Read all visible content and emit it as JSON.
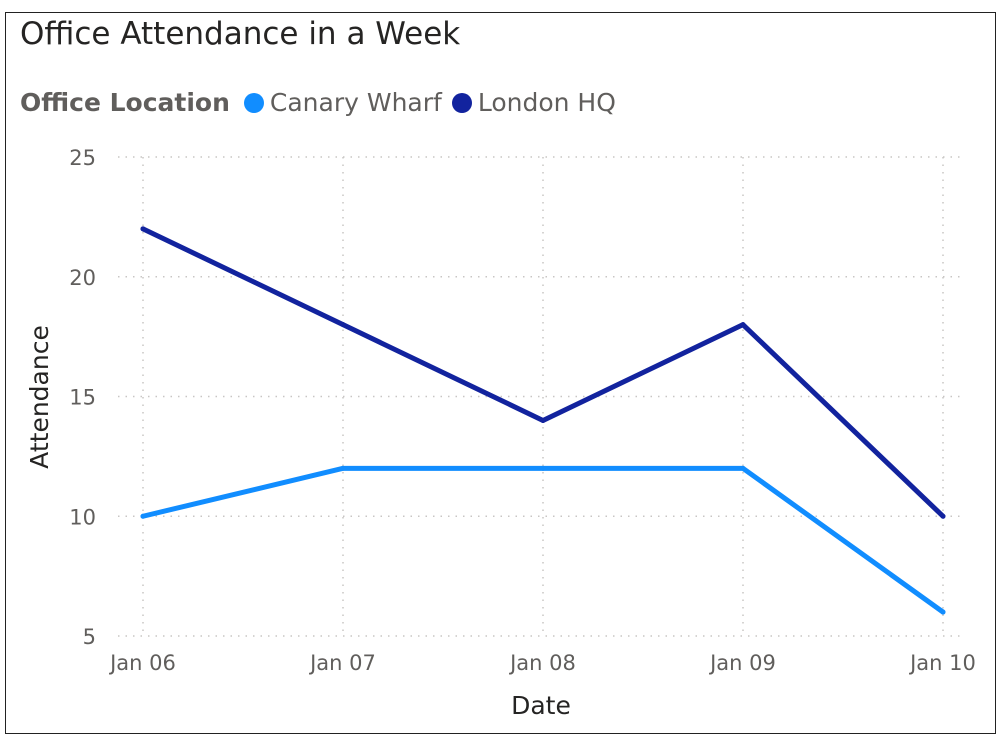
{
  "chart_data": {
    "type": "line",
    "title": "Office Attendance in a Week",
    "legend_title": "Office Location",
    "legend_position": "top-left",
    "xlabel": "Date",
    "ylabel": "Attendance",
    "categories": [
      "Jan 06",
      "Jan 07",
      "Jan 08",
      "Jan 09",
      "Jan 10"
    ],
    "yticks": [
      5,
      10,
      15,
      20,
      25
    ],
    "ylim": [
      5,
      25
    ],
    "grid": true,
    "series": [
      {
        "name": "Canary Wharf",
        "color": "#118DFF",
        "values": [
          10,
          12,
          12,
          12,
          6
        ]
      },
      {
        "name": "London HQ",
        "color": "#12239E",
        "values": [
          22,
          18,
          14,
          18,
          10
        ]
      }
    ]
  }
}
